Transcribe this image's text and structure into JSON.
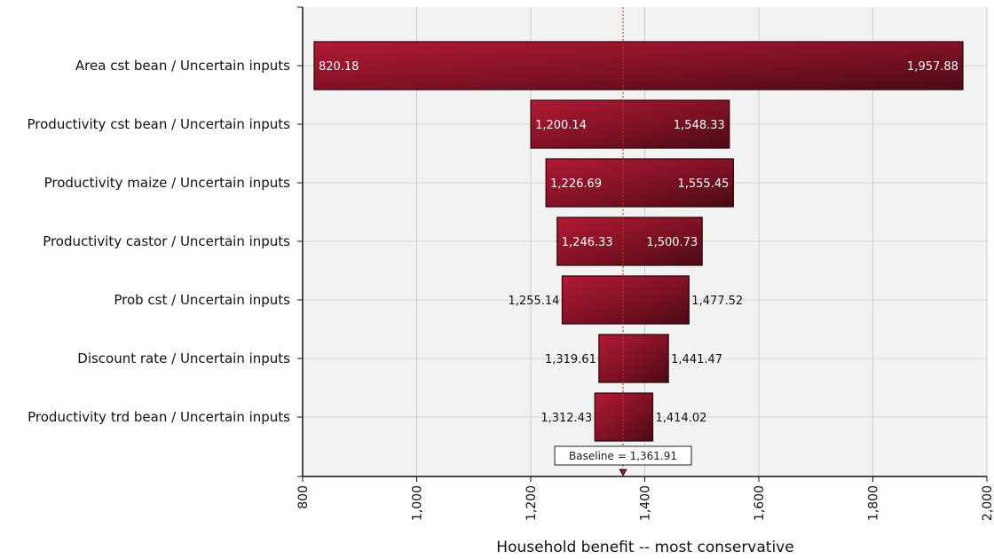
{
  "chart_data": {
    "type": "bar",
    "subtype": "tornado",
    "orientation": "horizontal",
    "xlabel": "Household benefit -- most conservative",
    "ylabel": "",
    "xlim": [
      800,
      2000
    ],
    "xticks": [
      800,
      1000,
      1200,
      1400,
      1600,
      1800,
      2000
    ],
    "xtick_labels": [
      "800",
      "1,000",
      "1,200",
      "1,400",
      "1,600",
      "1,800",
      "2,000"
    ],
    "grid": true,
    "baseline": {
      "value": 1361.91,
      "label": "Baseline = 1,361.91"
    },
    "bar_color": "#8b1428",
    "plot_background": "#f2f2f2",
    "bars": [
      {
        "category": "Area cst bean / Uncertain inputs",
        "low": 820.18,
        "high": 1957.88,
        "low_label": "820.18",
        "high_label": "1,957.88"
      },
      {
        "category": "Productivity cst bean / Uncertain inputs",
        "low": 1200.14,
        "high": 1548.33,
        "low_label": "1,200.14",
        "high_label": "1,548.33"
      },
      {
        "category": "Productivity maize / Uncertain inputs",
        "low": 1226.69,
        "high": 1555.45,
        "low_label": "1,226.69",
        "high_label": "1,555.45"
      },
      {
        "category": "Productivity castor / Uncertain inputs",
        "low": 1246.33,
        "high": 1500.73,
        "low_label": "1,246.33",
        "high_label": "1,500.73"
      },
      {
        "category": "Prob cst / Uncertain inputs",
        "low": 1255.14,
        "high": 1477.52,
        "low_label": "1,255.14",
        "high_label": "1,477.52"
      },
      {
        "category": "Discount rate / Uncertain inputs",
        "low": 1319.61,
        "high": 1441.47,
        "low_label": "1,319.61",
        "high_label": "1,441.47"
      },
      {
        "category": "Productivity trd bean / Uncertain inputs",
        "low": 1312.43,
        "high": 1414.02,
        "low_label": "1,312.43",
        "high_label": "1,414.02"
      }
    ]
  }
}
